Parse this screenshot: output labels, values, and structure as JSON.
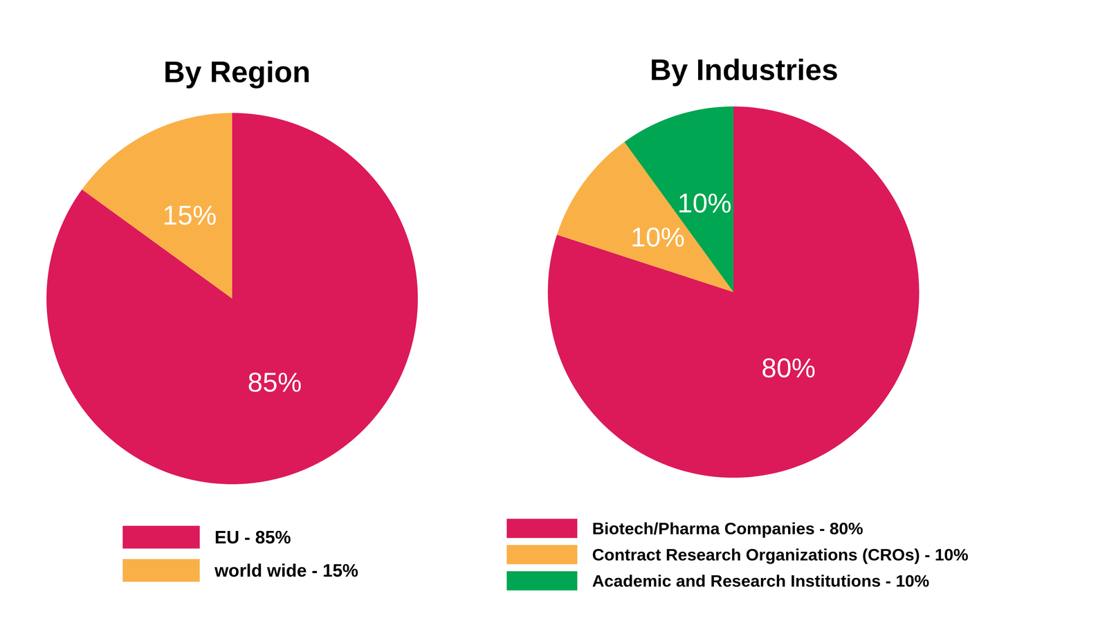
{
  "chart_data": [
    {
      "type": "pie",
      "title": "By Region",
      "categories": [
        "EU - 85%",
        "world wide - 15%"
      ],
      "values": [
        85,
        15
      ],
      "value_labels": [
        "85%",
        "15%"
      ],
      "colors": [
        "#dc1a5a",
        "#f9b147"
      ],
      "data_labels": true,
      "legend": "bottom"
    },
    {
      "type": "pie",
      "title": "By Industries",
      "categories": [
        "Biotech/Pharma Companies - 80%",
        "Contract Research Organizations (CROs) - 10%",
        "Academic and Research Institutions - 10%"
      ],
      "values": [
        80,
        10,
        10
      ],
      "value_labels": [
        "80%",
        "10%",
        "10%"
      ],
      "colors": [
        "#dc1a5a",
        "#f9b147",
        "#00a651"
      ],
      "data_labels": true,
      "legend": "bottom"
    }
  ]
}
